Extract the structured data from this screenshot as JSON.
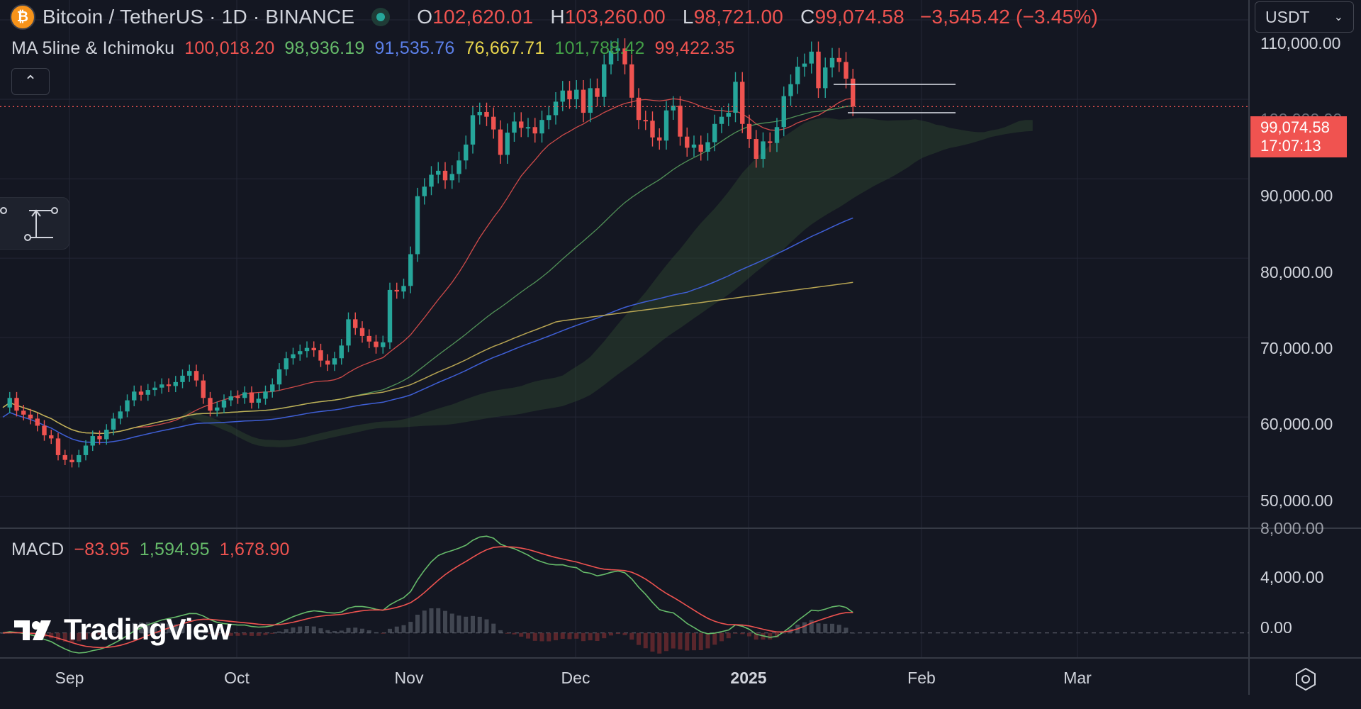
{
  "header": {
    "symbol_title": "Bitcoin / TetherUS · 1D · BINANCE",
    "logo_letter": "₿",
    "ohlc": [
      {
        "label": "O",
        "value": "102,620.01"
      },
      {
        "label": "H",
        "value": "103,260.00"
      },
      {
        "label": "L",
        "value": "98,721.00"
      },
      {
        "label": "C",
        "value": "99,074.58"
      }
    ],
    "change": "−3,545.42 (−3.45%)"
  },
  "indicator": {
    "name": "MA 5line & Ichimoku",
    "values": [
      {
        "value": "100,018.20",
        "color": "#ef5350"
      },
      {
        "value": "98,936.19",
        "color": "#66bb6a"
      },
      {
        "value": "91,535.76",
        "color": "#5b7fe8"
      },
      {
        "value": "76,667.71",
        "color": "#e8d54c"
      },
      {
        "value": "101,788.42",
        "color": "#43a047"
      },
      {
        "value": "99,422.35",
        "color": "#ef5350"
      }
    ]
  },
  "macd": {
    "name": "MACD",
    "values": [
      {
        "value": "−83.95",
        "color": "#ef5350"
      },
      {
        "value": "1,594.95",
        "color": "#66bb6a"
      },
      {
        "value": "1,678.90",
        "color": "#ef5350"
      }
    ]
  },
  "currency": {
    "selected": "USDT"
  },
  "price_tag": {
    "price": "99,074.58",
    "countdown": "17:07:13"
  },
  "price_axis": {
    "labels": [
      "110,000.00",
      "100,000.00",
      "90,000.00",
      "80,000.00",
      "70,000.00",
      "60,000.00",
      "50,000.00"
    ]
  },
  "macd_axis": {
    "labels": [
      "8,000.00",
      "4,000.00",
      "0.00"
    ]
  },
  "time_axis": {
    "labels": [
      "Sep",
      "Oct",
      "Nov",
      "Dec",
      "2025",
      "Feb",
      "Mar"
    ]
  },
  "branding": {
    "name": "TradingView"
  },
  "colors": {
    "background": "#141722",
    "up": "#26a69a",
    "down": "#ef5350",
    "ma_red": "#ef5350",
    "ma_green": "#66bb6a",
    "ma_blue": "#3f5fd6",
    "ma_yellow": "#c9b458",
    "macd_line": "#66bb6a",
    "signal_line": "#ef5350"
  },
  "chart_data": {
    "type": "candlestick",
    "title": "Bitcoin / TetherUS · 1D · BINANCE",
    "x_ticks": [
      "Sep",
      "Oct",
      "Nov",
      "Dec",
      "2025",
      "Feb",
      "Mar"
    ],
    "y_ticks": [
      50000,
      60000,
      70000,
      80000,
      90000,
      100000,
      110000
    ],
    "ylim": [
      46000,
      112500
    ],
    "last_price": 99074.58,
    "date_range": [
      "Aug 22",
      "Jan 27"
    ],
    "close_series": [
      61200,
      62400,
      60800,
      60300,
      59800,
      58900,
      57700,
      57300,
      55200,
      54600,
      54300,
      55200,
      56400,
      57600,
      57200,
      58400,
      59800,
      60700,
      62100,
      63200,
      62800,
      63400,
      63700,
      64100,
      63900,
      64400,
      65200,
      65800,
      64600,
      62400,
      60800,
      61200,
      62100,
      62600,
      62400,
      63100,
      61800,
      62300,
      63200,
      64100,
      66000,
      67400,
      67900,
      68300,
      68700,
      68400,
      67100,
      66600,
      67400,
      69000,
      72300,
      71200,
      70200,
      69500,
      68800,
      69400,
      76000,
      75800,
      76500,
      80500,
      87800,
      89000,
      90500,
      91000,
      89800,
      90600,
      92300,
      94300,
      98000,
      98400,
      97800,
      96200,
      93000,
      95800,
      97200,
      96400,
      96500,
      95700,
      97400,
      98000,
      99700,
      101100,
      100000,
      101200,
      98300,
      101400,
      100300,
      104400,
      106100,
      106400,
      104400,
      100200,
      97400,
      97300,
      95200,
      94800,
      98600,
      99200,
      95300,
      93900,
      94300,
      93400,
      94600,
      96900,
      97800,
      98300,
      102200,
      96900,
      95000,
      92500,
      94700,
      94500,
      96500,
      100400,
      101900,
      104100,
      104500,
      106000,
      101400,
      104000,
      105200,
      104700,
      102600,
      99074.58
    ],
    "ma_red_last": 100018.2,
    "ma_green_last": 98936.19,
    "ma_blue_last": 91535.76,
    "ma_yellow_last": 76667.71,
    "macd": {
      "histogram": -83.95,
      "macd": 1594.95,
      "signal": 1678.9,
      "ylim": [
        -2000,
        8200
      ]
    }
  }
}
